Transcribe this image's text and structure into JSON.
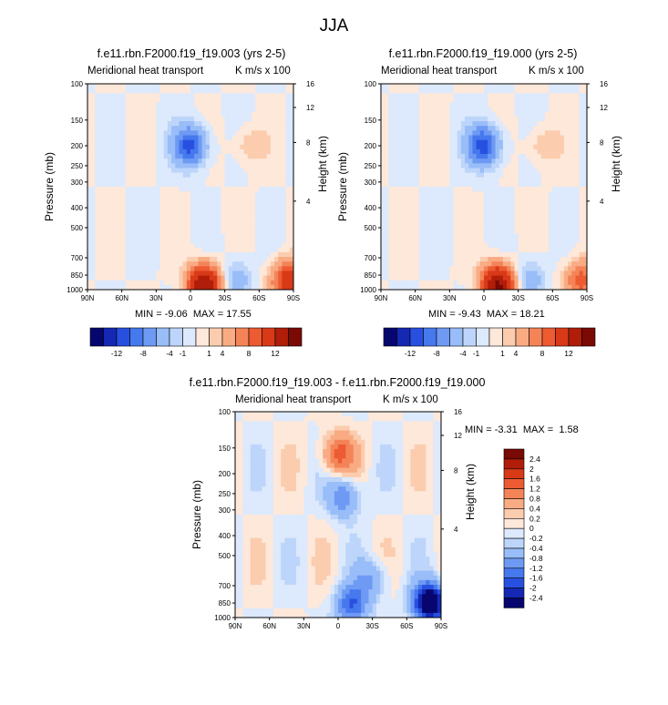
{
  "page_title": "JJA",
  "panels": [
    {
      "id": "p1",
      "title": "f.e11.rbn.F2000.f19_f19.003 (yrs 2-5)",
      "left_label": "Meridional heat transport",
      "right_label": "K m/s x 100",
      "ylabel": "Pressure (mb)",
      "ylabel_right": "Height (km)",
      "stats": "MIN = -9.06  MAX = 17.55"
    },
    {
      "id": "p2",
      "title": "f.e11.rbn.F2000.f19_f19.000 (yrs 2-5)",
      "left_label": "Meridional heat transport",
      "right_label": "K m/s x 100",
      "ylabel": "Pressure (mb)",
      "ylabel_right": "Height (km)",
      "stats": "MIN = -9.43  MAX = 18.21"
    },
    {
      "id": "p3",
      "title": "f.e11.rbn.F2000.f19_f19.003 - f.e11.rbn.F2000.f19_f19.000",
      "left_label": "Meridional heat transport",
      "right_label": "K m/s x 100",
      "ylabel": "Pressure (mb)",
      "ylabel_right": "Height (km)",
      "stats": "MIN = -3.31  MAX =  1.58"
    }
  ],
  "chart_data": [
    {
      "type": "heatmap",
      "title": "f.e11.rbn.F2000.f19_f19.003 (yrs 2-5)",
      "ylabel": "Pressure (mb)",
      "ylabel_right": "Height (km)",
      "x_ticks": [
        "90N",
        "60N",
        "30N",
        "0",
        "30S",
        "60S",
        "90S"
      ],
      "y_ticks": [
        "100",
        "150",
        "200",
        "250",
        "300",
        "400",
        "500",
        "700",
        "850",
        "1000"
      ],
      "y_ticks_right": [
        "16",
        "12",
        "8",
        "4"
      ],
      "ylim": [
        1000,
        100
      ],
      "y_scale": "log",
      "min": -9.06,
      "max": 17.55,
      "features": [
        {
          "lat": -12,
          "p": 950,
          "value": 16
        },
        {
          "lat": 0,
          "p": 200,
          "value": -9
        },
        {
          "lat": -50,
          "p": 200,
          "value": 2
        },
        {
          "lat": -40,
          "p": 880,
          "value": -3
        },
        {
          "lat": -85,
          "p": 900,
          "value": 10
        }
      ]
    },
    {
      "type": "heatmap",
      "title": "f.e11.rbn.F2000.f19_f19.000 (yrs 2-5)",
      "ylabel": "Pressure (mb)",
      "ylabel_right": "Height (km)",
      "x_ticks": [
        "90N",
        "60N",
        "30N",
        "0",
        "30S",
        "60S",
        "90S"
      ],
      "y_ticks": [
        "100",
        "150",
        "200",
        "250",
        "300",
        "400",
        "500",
        "700",
        "850",
        "1000"
      ],
      "y_ticks_right": [
        "16",
        "12",
        "8",
        "4"
      ],
      "ylim": [
        1000,
        100
      ],
      "y_scale": "log",
      "min": -9.43,
      "max": 18.21,
      "features": [
        {
          "lat": -12,
          "p": 950,
          "value": 17
        },
        {
          "lat": 0,
          "p": 200,
          "value": -9.4
        },
        {
          "lat": -50,
          "p": 200,
          "value": 2
        },
        {
          "lat": -40,
          "p": 880,
          "value": -3
        },
        {
          "lat": -85,
          "p": 900,
          "value": 7
        }
      ]
    },
    {
      "type": "heatmap",
      "title": "f.e11.rbn.F2000.f19_f19.003 - f.e11.rbn.F2000.f19_f19.000",
      "ylabel": "Pressure (mb)",
      "ylabel_right": "Height (km)",
      "x_ticks": [
        "90N",
        "60N",
        "30N",
        "0",
        "30S",
        "60S",
        "90S"
      ],
      "y_ticks": [
        "100",
        "150",
        "200",
        "250",
        "300",
        "400",
        "500",
        "700",
        "850",
        "1000"
      ],
      "y_ticks_right": [
        "16",
        "12",
        "8",
        "4"
      ],
      "ylim": [
        1000,
        100
      ],
      "y_scale": "log",
      "min": -3.31,
      "max": 1.58,
      "features": [
        {
          "lat": 0,
          "p": 160,
          "value": 1.4
        },
        {
          "lat": -5,
          "p": 260,
          "value": -1.2
        },
        {
          "lat": -12,
          "p": 870,
          "value": -1.6
        },
        {
          "lat": -80,
          "p": 850,
          "value": -3.3
        },
        {
          "lat": -30,
          "p": 650,
          "value": -0.8
        }
      ]
    }
  ],
  "colorbar_horizontal": {
    "labels": [
      "-12",
      "-8",
      "-4",
      "-1",
      "1",
      "4",
      "8",
      "12"
    ],
    "colors": [
      "#06066e",
      "#1428b4",
      "#2850e0",
      "#4678ee",
      "#6e9af4",
      "#98bdf8",
      "#bdd5fa",
      "#dde9fc",
      "#fde8da",
      "#fbccae",
      "#f9ab84",
      "#f48458",
      "#ec5b32",
      "#d83a18",
      "#b01e0a",
      "#7a0a04"
    ]
  },
  "colorbar_vertical": {
    "labels": [
      "2.4",
      "2",
      "1.6",
      "1.2",
      "0.8",
      "0.4",
      "0.2",
      "0",
      "-0.2",
      "-0.4",
      "-0.8",
      "-1.2",
      "-1.6",
      "-2",
      "-2.4"
    ],
    "colors": [
      "#7a0a04",
      "#b01e0a",
      "#d83a18",
      "#ec5b32",
      "#f48458",
      "#f9ab84",
      "#fbccae",
      "#fde8da",
      "#dde9fc",
      "#bdd5fa",
      "#98bdf8",
      "#6e9af4",
      "#4678ee",
      "#2850e0",
      "#1428b4",
      "#06066e"
    ]
  }
}
